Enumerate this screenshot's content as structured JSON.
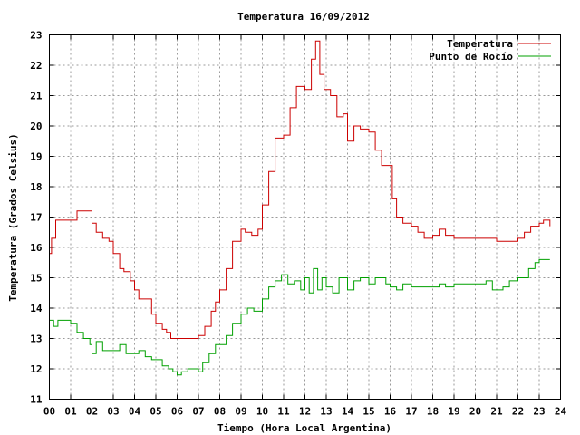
{
  "chart_data": {
    "type": "line",
    "title": "Temperatura 16/09/2012",
    "xlabel": "Tiempo (Hora Local Argentina)",
    "ylabel": "Temperatura (Grados Celsius)",
    "xlim": [
      0,
      24
    ],
    "ylim": [
      11,
      23
    ],
    "xticks": [
      "00",
      "01",
      "02",
      "03",
      "04",
      "05",
      "06",
      "07",
      "08",
      "09",
      "10",
      "11",
      "12",
      "13",
      "14",
      "15",
      "16",
      "17",
      "18",
      "19",
      "20",
      "21",
      "22",
      "23",
      "24"
    ],
    "yticks": [
      "11",
      "12",
      "13",
      "14",
      "15",
      "16",
      "17",
      "18",
      "19",
      "20",
      "21",
      "22",
      "23"
    ],
    "grid": true,
    "legend_position": "top-right",
    "colors": {
      "temperatura": "#cc0000",
      "punto_rocio": "#00a000"
    },
    "series": [
      {
        "name": "Temperatura",
        "x": [
          0.0,
          0.1,
          0.3,
          0.5,
          1.0,
          1.3,
          1.5,
          1.8,
          2.0,
          2.2,
          2.5,
          2.8,
          3.0,
          3.3,
          3.5,
          3.8,
          4.0,
          4.2,
          4.5,
          4.8,
          5.0,
          5.3,
          5.5,
          5.7,
          6.0,
          6.3,
          6.6,
          7.0,
          7.3,
          7.6,
          7.8,
          8.0,
          8.3,
          8.6,
          9.0,
          9.2,
          9.5,
          9.8,
          10.0,
          10.3,
          10.6,
          11.0,
          11.3,
          11.6,
          12.0,
          12.3,
          12.5,
          12.7,
          12.9,
          13.2,
          13.5,
          13.8,
          14.0,
          14.3,
          14.6,
          15.0,
          15.3,
          15.6,
          15.9,
          16.1,
          16.3,
          16.6,
          17.0,
          17.3,
          17.6,
          18.0,
          18.3,
          18.6,
          19.0,
          19.5,
          20.0,
          20.5,
          21.0,
          21.5,
          22.0,
          22.3,
          22.6,
          23.0,
          23.2,
          23.5
        ],
        "values": [
          15.8,
          16.3,
          16.9,
          16.9,
          16.9,
          17.2,
          17.2,
          17.2,
          16.8,
          16.5,
          16.3,
          16.2,
          15.8,
          15.3,
          15.2,
          14.9,
          14.6,
          14.3,
          14.3,
          13.8,
          13.5,
          13.3,
          13.2,
          13.0,
          13.0,
          13.0,
          13.0,
          13.1,
          13.4,
          13.9,
          14.2,
          14.6,
          15.3,
          16.2,
          16.6,
          16.5,
          16.4,
          16.6,
          17.4,
          18.5,
          19.6,
          19.7,
          20.6,
          21.3,
          21.2,
          22.2,
          22.8,
          21.7,
          21.2,
          21.0,
          20.3,
          20.4,
          19.5,
          20.0,
          19.9,
          19.8,
          19.2,
          18.7,
          18.7,
          17.6,
          17.0,
          16.8,
          16.7,
          16.5,
          16.3,
          16.4,
          16.6,
          16.4,
          16.3,
          16.3,
          16.3,
          16.3,
          16.2,
          16.2,
          16.3,
          16.5,
          16.7,
          16.8,
          16.9,
          16.7
        ]
      },
      {
        "name": "Punto de Rocío",
        "x": [
          0.0,
          0.2,
          0.4,
          0.6,
          1.0,
          1.3,
          1.6,
          1.9,
          2.0,
          2.2,
          2.5,
          2.8,
          3.0,
          3.3,
          3.6,
          4.0,
          4.2,
          4.5,
          4.8,
          5.0,
          5.3,
          5.6,
          5.8,
          6.0,
          6.2,
          6.5,
          6.8,
          7.0,
          7.2,
          7.5,
          7.8,
          8.0,
          8.3,
          8.6,
          9.0,
          9.3,
          9.6,
          10.0,
          10.3,
          10.6,
          10.9,
          11.2,
          11.5,
          11.8,
          12.0,
          12.2,
          12.4,
          12.6,
          12.8,
          13.0,
          13.3,
          13.6,
          14.0,
          14.3,
          14.6,
          15.0,
          15.3,
          15.6,
          15.8,
          16.0,
          16.3,
          16.6,
          17.0,
          17.5,
          18.0,
          18.3,
          18.6,
          19.0,
          19.5,
          20.0,
          20.5,
          20.8,
          21.0,
          21.3,
          21.6,
          22.0,
          22.3,
          22.5,
          22.8,
          23.0,
          23.5
        ],
        "values": [
          13.6,
          13.4,
          13.6,
          13.6,
          13.5,
          13.2,
          13.0,
          12.8,
          12.5,
          12.9,
          12.6,
          12.6,
          12.6,
          12.8,
          12.5,
          12.5,
          12.6,
          12.4,
          12.3,
          12.3,
          12.1,
          12.0,
          11.9,
          11.8,
          11.9,
          12.0,
          12.0,
          11.9,
          12.2,
          12.5,
          12.8,
          12.8,
          13.1,
          13.5,
          13.8,
          14.0,
          13.9,
          14.3,
          14.7,
          14.9,
          15.1,
          14.8,
          14.9,
          14.6,
          15.0,
          14.5,
          15.3,
          14.6,
          15.0,
          14.7,
          14.5,
          15.0,
          14.6,
          14.9,
          15.0,
          14.8,
          15.0,
          15.0,
          14.8,
          14.7,
          14.6,
          14.8,
          14.7,
          14.7,
          14.7,
          14.8,
          14.7,
          14.8,
          14.8,
          14.8,
          14.9,
          14.6,
          14.6,
          14.7,
          14.9,
          15.0,
          15.0,
          15.3,
          15.5,
          15.6,
          15.6
        ]
      }
    ]
  }
}
